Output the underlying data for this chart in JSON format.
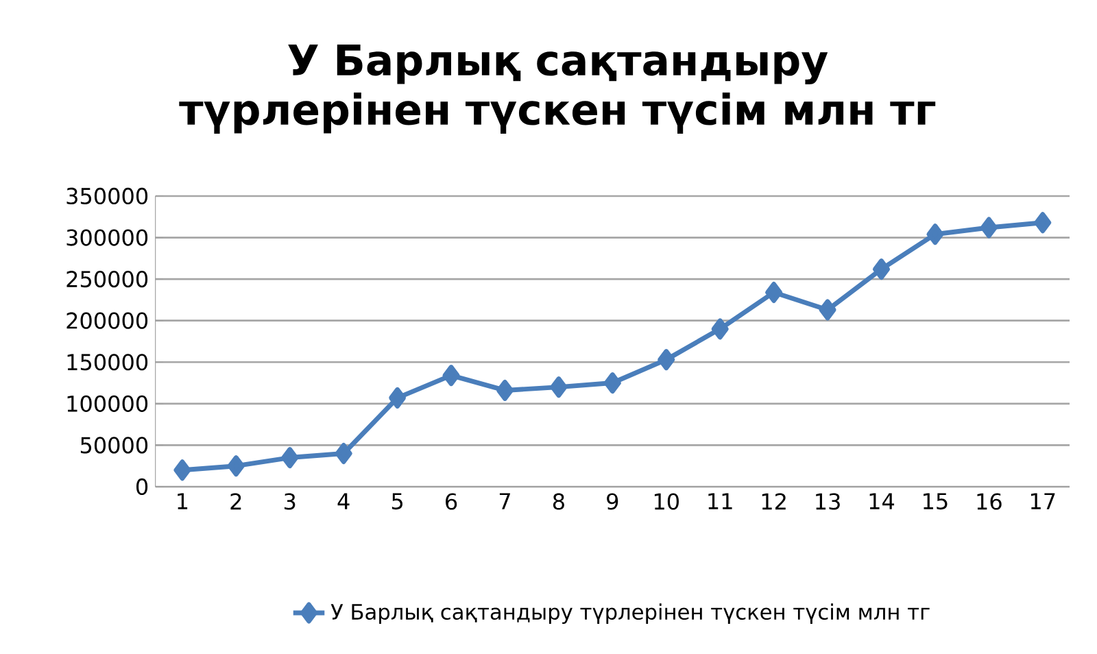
{
  "chart_data": {
    "type": "line",
    "title": "У Барлық сақтандыру түрлерінен түскен түсім млн тг",
    "categories": [
      "1",
      "2",
      "3",
      "4",
      "5",
      "6",
      "7",
      "8",
      "9",
      "10",
      "11",
      "12",
      "13",
      "14",
      "15",
      "16",
      "17"
    ],
    "series": [
      {
        "name": "У Барлық сақтандыру түрлерінен түскен түсім млн тг",
        "color": "#4a7ebb",
        "values": [
          20000,
          25000,
          35000,
          40000,
          107000,
          134000,
          116000,
          120000,
          125000,
          153000,
          190000,
          234000,
          213000,
          262000,
          304000,
          312000,
          318000
        ]
      }
    ],
    "ylim": [
      0,
      350000
    ],
    "yticks": [
      0,
      50000,
      100000,
      150000,
      200000,
      250000,
      300000,
      350000
    ],
    "grid": "y",
    "legend": "bottom",
    "marker": "diamond",
    "line_style": "solid"
  }
}
